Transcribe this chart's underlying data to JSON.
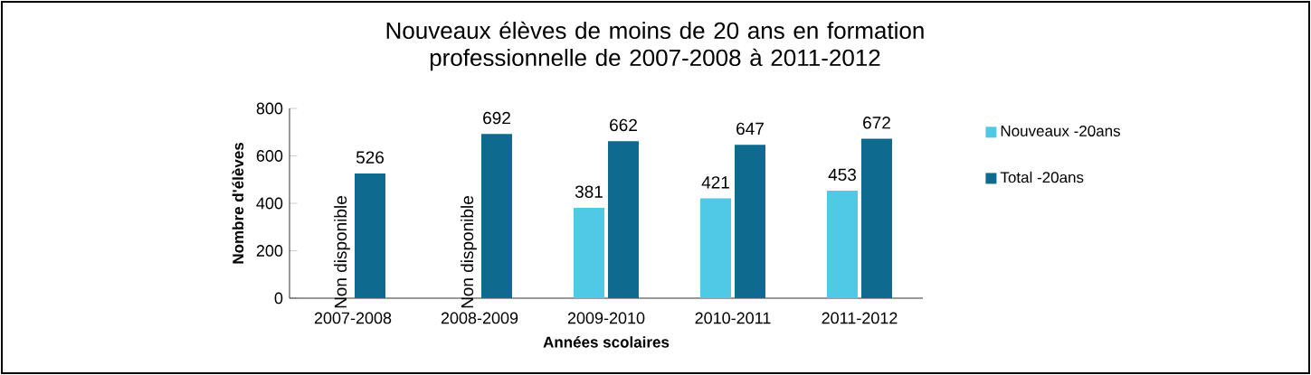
{
  "chart_data": {
    "type": "bar",
    "title": "Nouveaux élèves de moins de 20 ans en formation professionnelle de 2007-2008 à 2011-2012",
    "xlabel": "Années scolaires",
    "ylabel": "Nombre d'élèves",
    "categories": [
      "2007-2008",
      "2008-2009",
      "2009-2010",
      "2010-2011",
      "2011-2012"
    ],
    "series": [
      {
        "name": "Nouveaux -20ans",
        "color": "#4fc9e6",
        "values": [
          null,
          null,
          381,
          421,
          453
        ]
      },
      {
        "name": "Total -20ans",
        "color": "#0e6a8e",
        "values": [
          526,
          692,
          662,
          647,
          672
        ]
      }
    ],
    "annotations": [
      {
        "text": "Non disponible",
        "x": "2007-2008",
        "y": 0
      },
      {
        "text": "Non disponible",
        "x": "2008-2009",
        "y": 0
      }
    ],
    "ylim": [
      0,
      800
    ],
    "yticks": [
      0,
      200,
      400,
      600,
      800
    ],
    "data_labels": true,
    "legend": "right",
    "grid": false
  }
}
